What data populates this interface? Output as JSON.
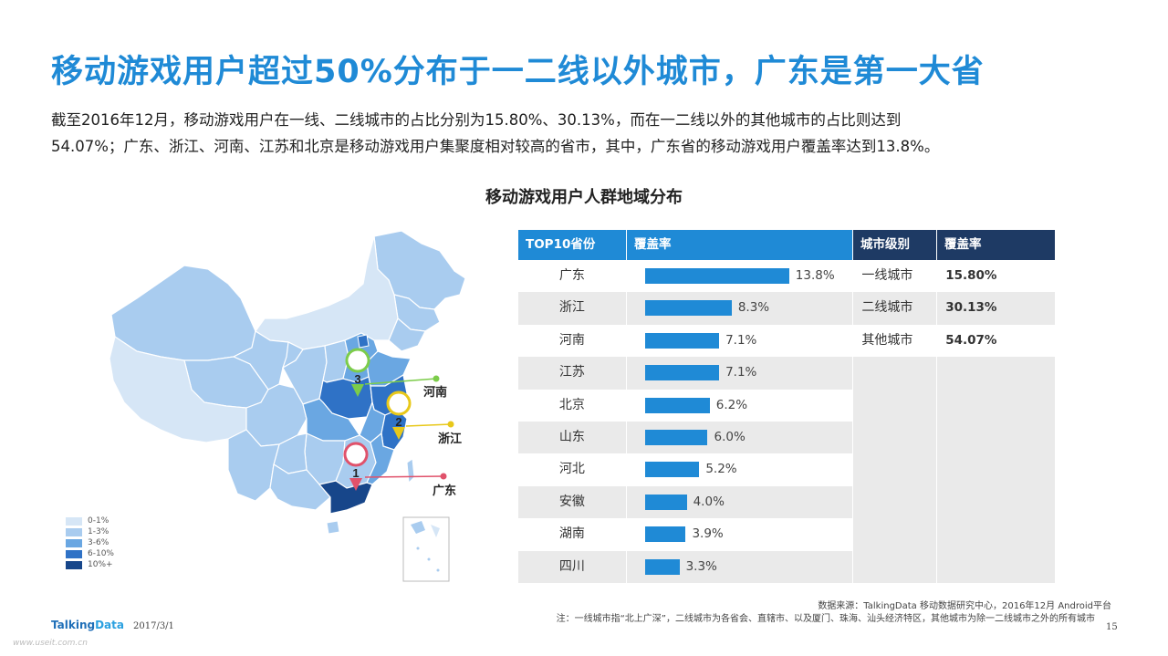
{
  "title": "移动游戏用户超过50%分布于一二线以外城市，广东是第一大省",
  "description": {
    "line1": "截至2016年12月，移动游戏用户在一线、二线城市的占比分别为15.80%、30.13%，而在一二线以外的其他城市的占比则达到",
    "line2": "54.07%；广东、浙江、河南、江苏和北京是移动游戏用户集聚度相对较高的省市，其中，广东省的移动游戏用户覆盖率达到13.8%。"
  },
  "chart_title": "移动游戏用户人群地域分布",
  "map": {
    "callouts": [
      {
        "rank": "1",
        "province": "广东",
        "color": "#e0526b"
      },
      {
        "rank": "2",
        "province": "浙江",
        "color": "#e8c81a"
      },
      {
        "rank": "3",
        "province": "河南",
        "color": "#7ccc4a"
      }
    ],
    "legend": [
      {
        "label": "0-1%",
        "color": "#d6e6f6"
      },
      {
        "label": "1-3%",
        "color": "#a9ccef"
      },
      {
        "label": "3-6%",
        "color": "#6aa7e2"
      },
      {
        "label": "6-10%",
        "color": "#2f72c6"
      },
      {
        "label": "10%+",
        "color": "#17468a"
      }
    ]
  },
  "table": {
    "headers": {
      "province": "TOP10省份",
      "coverage": "覆盖率",
      "tier": "城市级别",
      "tier_rate": "覆盖率"
    },
    "tiers": [
      {
        "tier": "一线城市",
        "rate": "15.80%"
      },
      {
        "tier": "二线城市",
        "rate": "30.13%"
      },
      {
        "tier": "其他城市",
        "rate": "54.07%"
      }
    ]
  },
  "chart_data": {
    "type": "bar",
    "categories": [
      "广东",
      "浙江",
      "河南",
      "江苏",
      "北京",
      "山东",
      "河北",
      "安徽",
      "湖南",
      "四川"
    ],
    "values": [
      13.8,
      8.3,
      7.1,
      7.1,
      6.2,
      6.0,
      5.2,
      4.0,
      3.9,
      3.3
    ],
    "value_labels": [
      "13.8%",
      "8.3%",
      "7.1%",
      "7.1%",
      "6.2%",
      "6.0%",
      "5.2%",
      "4.0%",
      "3.9%",
      "3.3%"
    ],
    "title": "",
    "xlabel": "",
    "ylabel": "",
    "xlim": [
      0,
      14
    ],
    "bar_color": "#1f8ad6",
    "orientation": "horizontal"
  },
  "footer": {
    "source": "数据来源：TalkingData 移动数据研究中心，2016年12月 Android平台",
    "note": "注：一线城市指“北上广深”，二线城市为各省会、直辖市、以及厦门、珠海、汕头经济特区，其他城市为除一二线城市之外的所有城市",
    "logo_a": "Talking",
    "logo_b": "Data",
    "date": "2017/3/1",
    "page": "15",
    "watermark": "www.useit.com.cn"
  }
}
